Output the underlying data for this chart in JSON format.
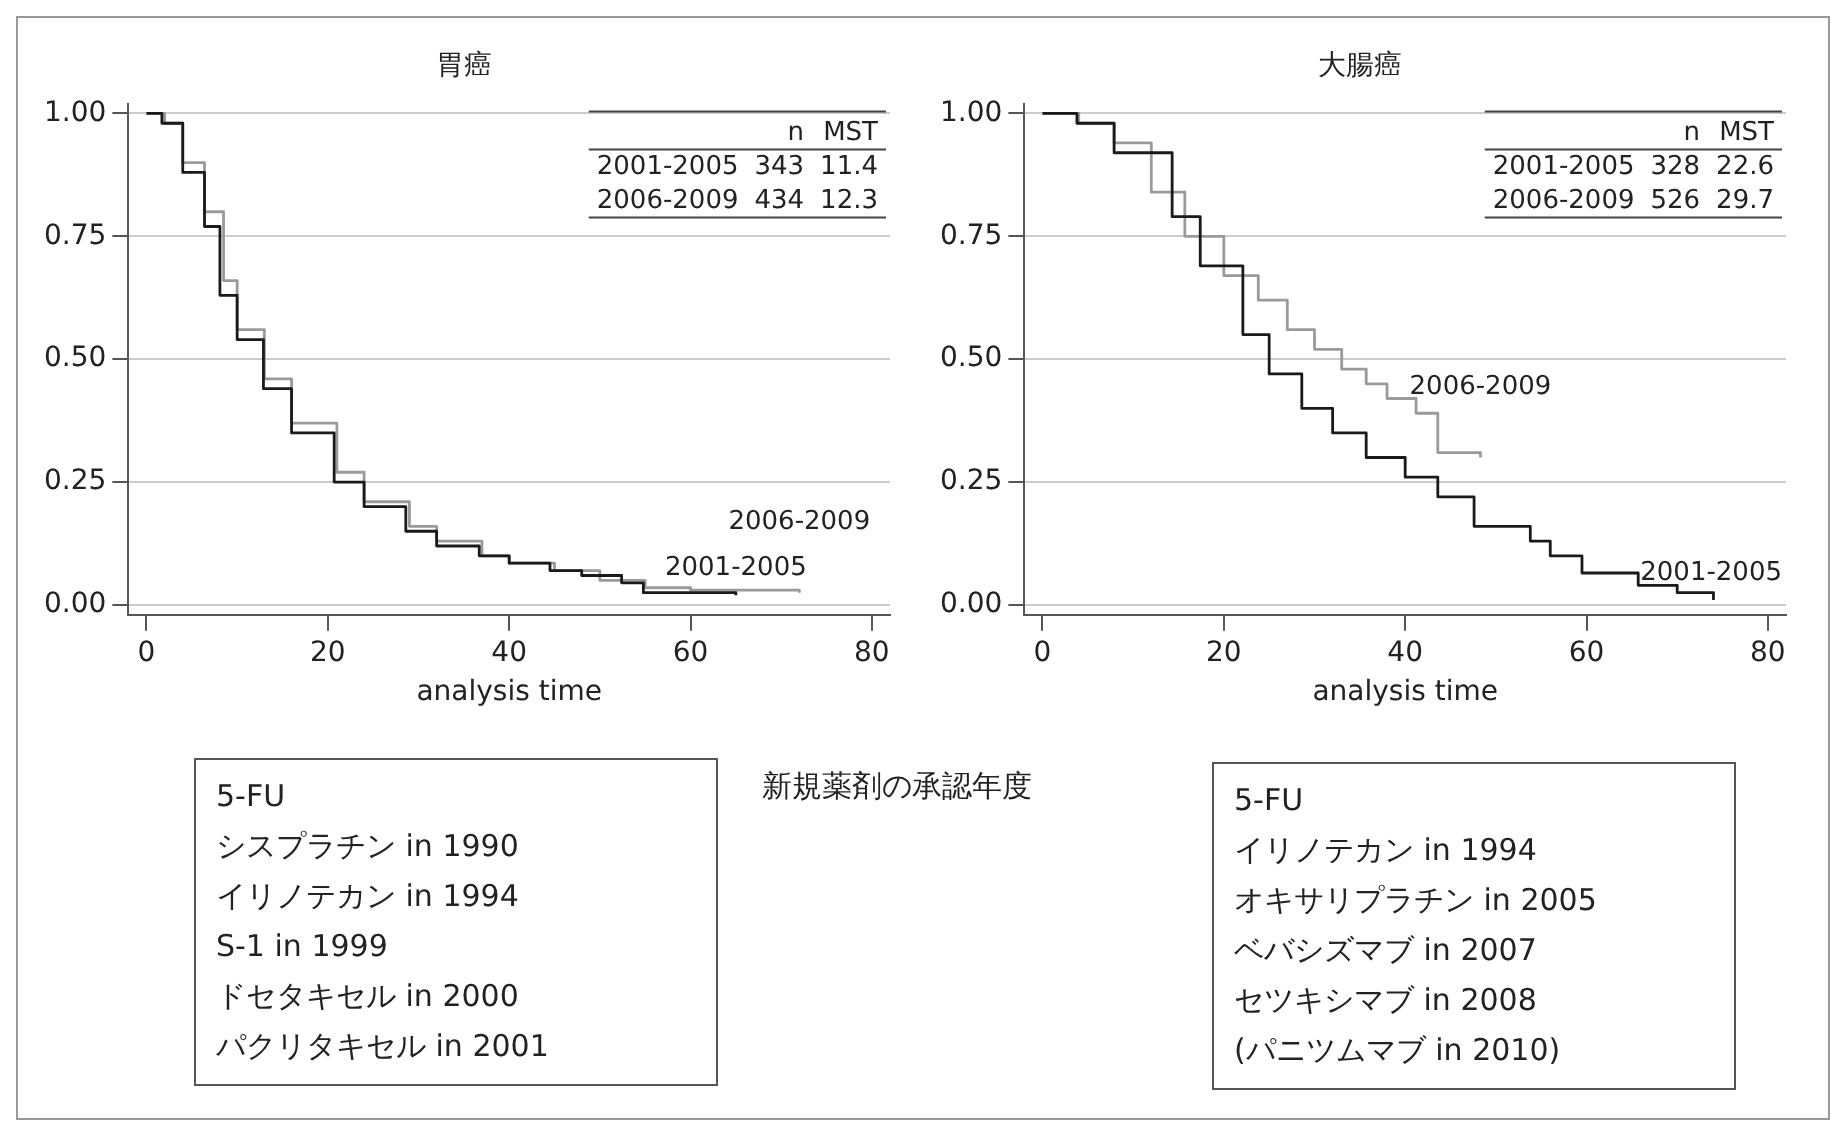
{
  "chart_data": [
    {
      "type": "step",
      "title": "胃癌",
      "xlabel": "analysis time",
      "xlim": [
        -2,
        82
      ],
      "ylim": [
        -0.02,
        1.02
      ],
      "xticks": [
        0,
        20,
        40,
        60,
        80
      ],
      "yticks": [
        {
          "value": 0,
          "label": "0.00"
        },
        {
          "value": 0.25,
          "label": "0.25"
        },
        {
          "value": 0.5,
          "label": "0.50"
        },
        {
          "value": 0.75,
          "label": "0.75"
        },
        {
          "value": 1,
          "label": "1.00"
        }
      ],
      "grid": "y",
      "legend": false,
      "series": [
        {
          "name": "2001-2005",
          "color": "#1a1a1a",
          "x": [
            0,
            1.7,
            4,
            6.4,
            8.1,
            10,
            12.9,
            16,
            20.7,
            24,
            28.6,
            32,
            36.7,
            40,
            44.5,
            48,
            52.4,
            54.8,
            60,
            65
          ],
          "values": [
            1,
            0.98,
            0.88,
            0.77,
            0.63,
            0.54,
            0.44,
            0.35,
            0.25,
            0.2,
            0.15,
            0.12,
            0.1,
            0.085,
            0.07,
            0.06,
            0.045,
            0.025,
            0.025,
            0.02
          ]
        },
        {
          "name": "2006-2009",
          "color": "#9a9a9a",
          "x": [
            0,
            2,
            4,
            6.4,
            8.5,
            10,
            13,
            16,
            21,
            24,
            29,
            32,
            37,
            40,
            45,
            50,
            55,
            60,
            66,
            72
          ],
          "values": [
            1,
            0.98,
            0.9,
            0.8,
            0.66,
            0.56,
            0.46,
            0.37,
            0.27,
            0.21,
            0.16,
            0.13,
            0.1,
            0.085,
            0.07,
            0.05,
            0.035,
            0.03,
            0.03,
            0.025
          ]
        }
      ],
      "annotations": [
        "n MST",
        "2001-2005 343 11.4",
        "2006-2009 434 12.3"
      ]
    },
    {
      "type": "step",
      "title": "大腸癌",
      "xlabel": "analysis time",
      "xlim": [
        -2,
        82
      ],
      "ylim": [
        -0.02,
        1.02
      ],
      "xticks": [
        0,
        20,
        40,
        60,
        80
      ],
      "yticks": [
        {
          "value": 0,
          "label": "0.00"
        },
        {
          "value": 0.25,
          "label": "0.25"
        },
        {
          "value": 0.5,
          "label": "0.50"
        },
        {
          "value": 0.75,
          "label": "0.75"
        },
        {
          "value": 1,
          "label": "1.00"
        }
      ],
      "grid": "y",
      "legend": false,
      "series": [
        {
          "name": "2001-2005",
          "color": "#1a1a1a",
          "x": [
            0,
            3.8,
            7.9,
            14.3,
            17.4,
            22.1,
            25,
            28.6,
            32,
            35.7,
            40,
            43.6,
            47.6,
            53.8,
            56,
            59.5,
            65.7,
            70,
            74
          ],
          "values": [
            1,
            0.98,
            0.92,
            0.79,
            0.69,
            0.55,
            0.47,
            0.4,
            0.35,
            0.3,
            0.26,
            0.22,
            0.16,
            0.13,
            0.1,
            0.065,
            0.04,
            0.025,
            0.01
          ]
        },
        {
          "name": "2006-2009",
          "color": "#9a9a9a",
          "x": [
            0,
            4,
            7.9,
            12,
            15.7,
            20,
            23.8,
            27,
            30,
            33,
            35.7,
            38,
            41.2,
            43.6,
            48.3
          ],
          "values": [
            1,
            0.98,
            0.94,
            0.84,
            0.75,
            0.67,
            0.62,
            0.56,
            0.52,
            0.48,
            0.45,
            0.42,
            0.39,
            0.31,
            0.3
          ]
        }
      ],
      "annotations": [
        "n MST",
        "2001-2005 328 22.6",
        "2006-2009 526 29.7"
      ]
    },
    {
      "type": "other",
      "annotations": [
        "5-FU",
        "シスプラチン in 1990",
        "イリノテカン in 1994",
        "S-1 in 1999",
        "ドセタキセル in 2000",
        "パクリタキセル in 2001"
      ]
    },
    {
      "type": "other",
      "title": "新規薬剤の承認年度"
    },
    {
      "type": "other",
      "annotations": [
        "5-FU",
        "イリノテカン in 1994",
        "オキサリプラチン in 2005",
        "ベバシズマブ in 2007",
        "セツキシマブ in 2008",
        "(パニツムマブ in 2010)"
      ]
    }
  ]
}
